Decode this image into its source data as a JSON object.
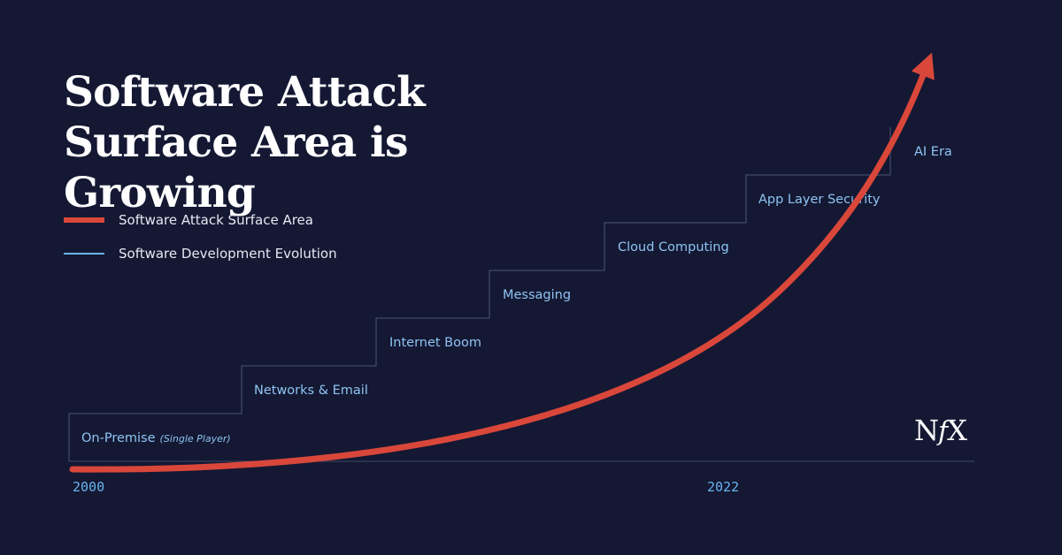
{
  "title": "Software Attack Surface Area is Growing",
  "legend": [
    {
      "label": "Software Attack Surface Area",
      "color": "#d9473a"
    },
    {
      "label": "Software Development Evolution",
      "color": "#6ab3f0"
    }
  ],
  "chart_data": {
    "type": "line",
    "title": "Software Attack Surface Area is Growing",
    "x_axis": {
      "start_label": "2000",
      "end_label": "2022",
      "grid": false
    },
    "series": [
      {
        "name": "Software Attack Surface Area",
        "shape": "exponential curve ending in arrow",
        "color": "#d9473a"
      },
      {
        "name": "Software Development Evolution",
        "shape": "staircase",
        "color": "#6ab3f0",
        "steps": [
          {
            "label": "On-Premise",
            "sublabel": "(Single Player)"
          },
          {
            "label": "Networks & Email"
          },
          {
            "label": "Internet Boom"
          },
          {
            "label": "Messaging"
          },
          {
            "label": "Cloud Computing"
          },
          {
            "label": "App Layer Security"
          },
          {
            "label": "AI Era"
          }
        ]
      }
    ]
  },
  "logo": {
    "text_n": "N",
    "text_f": "f",
    "text_x": "X"
  }
}
